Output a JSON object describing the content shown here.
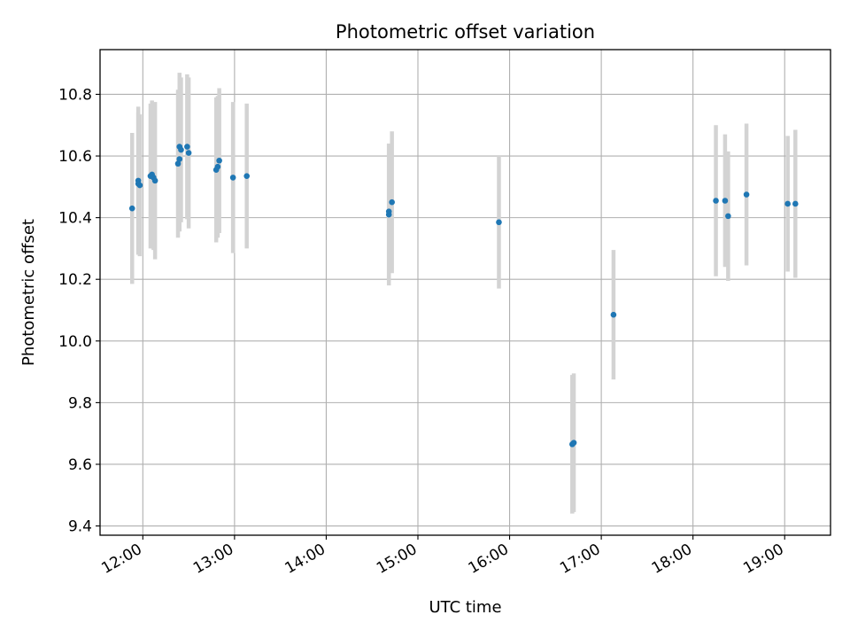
{
  "chart_data": {
    "type": "scatter",
    "title": "Photometric offset variation",
    "xlabel": "UTC time",
    "ylabel": "Photometric offset",
    "xlim": [
      "11:32",
      "19:30"
    ],
    "ylim": [
      9.37,
      10.945
    ],
    "grid": true,
    "x_ticks": [
      "12:00",
      "13:00",
      "14:00",
      "15:00",
      "16:00",
      "17:00",
      "18:00",
      "19:00"
    ],
    "y_ticks": [
      "9.4",
      "9.6",
      "9.8",
      "10.0",
      "10.2",
      "10.4",
      "10.6",
      "10.8"
    ],
    "marker_color": "#1f77b4",
    "errorbar_color": "#d3d3d3",
    "points": [
      {
        "x": "11:53",
        "y": 10.43,
        "yerr": 0.245
      },
      {
        "x": "11:57",
        "y": 10.52,
        "yerr": 0.24
      },
      {
        "x": "11:57",
        "y": 10.51,
        "yerr": 0.23
      },
      {
        "x": "11:58",
        "y": 10.505,
        "yerr": 0.23
      },
      {
        "x": "12:05",
        "y": 10.535,
        "yerr": 0.235
      },
      {
        "x": "12:06",
        "y": 10.54,
        "yerr": 0.24
      },
      {
        "x": "12:07",
        "y": 10.53,
        "yerr": 0.235
      },
      {
        "x": "12:08",
        "y": 10.52,
        "yerr": 0.255
      },
      {
        "x": "12:23",
        "y": 10.575,
        "yerr": 0.24
      },
      {
        "x": "12:24",
        "y": 10.59,
        "yerr": 0.235
      },
      {
        "x": "12:24",
        "y": 10.63,
        "yerr": 0.24
      },
      {
        "x": "12:25",
        "y": 10.62,
        "yerr": 0.235
      },
      {
        "x": "12:29",
        "y": 10.63,
        "yerr": 0.235
      },
      {
        "x": "12:30",
        "y": 10.61,
        "yerr": 0.245
      },
      {
        "x": "12:48",
        "y": 10.555,
        "yerr": 0.235
      },
      {
        "x": "12:49",
        "y": 10.565,
        "yerr": 0.23
      },
      {
        "x": "12:50",
        "y": 10.585,
        "yerr": 0.235
      },
      {
        "x": "12:59",
        "y": 10.53,
        "yerr": 0.245
      },
      {
        "x": "13:08",
        "y": 10.535,
        "yerr": 0.235
      },
      {
        "x": "14:41",
        "y": 10.41,
        "yerr": 0.23
      },
      {
        "x": "14:41",
        "y": 10.42,
        "yerr": 0.22
      },
      {
        "x": "14:43",
        "y": 10.45,
        "yerr": 0.23
      },
      {
        "x": "15:53",
        "y": 10.385,
        "yerr": 0.215
      },
      {
        "x": "16:41",
        "y": 9.665,
        "yerr": 0.225
      },
      {
        "x": "16:42",
        "y": 9.67,
        "yerr": 0.225
      },
      {
        "x": "17:08",
        "y": 10.085,
        "yerr": 0.21
      },
      {
        "x": "18:15",
        "y": 10.455,
        "yerr": 0.245
      },
      {
        "x": "18:21",
        "y": 10.455,
        "yerr": 0.215
      },
      {
        "x": "18:23",
        "y": 10.405,
        "yerr": 0.21
      },
      {
        "x": "18:35",
        "y": 10.475,
        "yerr": 0.23
      },
      {
        "x": "19:02",
        "y": 10.445,
        "yerr": 0.22
      },
      {
        "x": "19:07",
        "y": 10.445,
        "yerr": 0.24
      }
    ]
  }
}
